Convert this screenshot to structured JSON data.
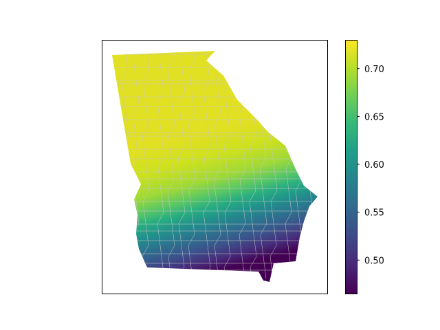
{
  "map": {
    "region": "Georgia counties",
    "type": "choropleth",
    "axes_frame": true,
    "colormap": "viridis",
    "gradient_direction": "decreasing from north-west to south",
    "colorbar": {
      "range": [
        0.465,
        0.73
      ],
      "ticks": [
        "0.70",
        "0.65",
        "0.60",
        "0.55",
        "0.50"
      ],
      "tick_values": [
        0.7,
        0.65,
        0.6,
        0.55,
        0.5
      ],
      "colors": [
        "#440154",
        "#482878",
        "#3e4989",
        "#31688e",
        "#26828e",
        "#1f9e89",
        "#35b779",
        "#6ece58",
        "#b5de2b",
        "#fde725"
      ]
    },
    "boundary_color": "#c8c8c8",
    "sample_values": [
      0.72,
      0.7,
      0.68,
      0.66,
      0.64,
      0.62,
      0.6,
      0.58,
      0.56,
      0.54,
      0.52,
      0.5,
      0.48,
      0.47
    ]
  }
}
